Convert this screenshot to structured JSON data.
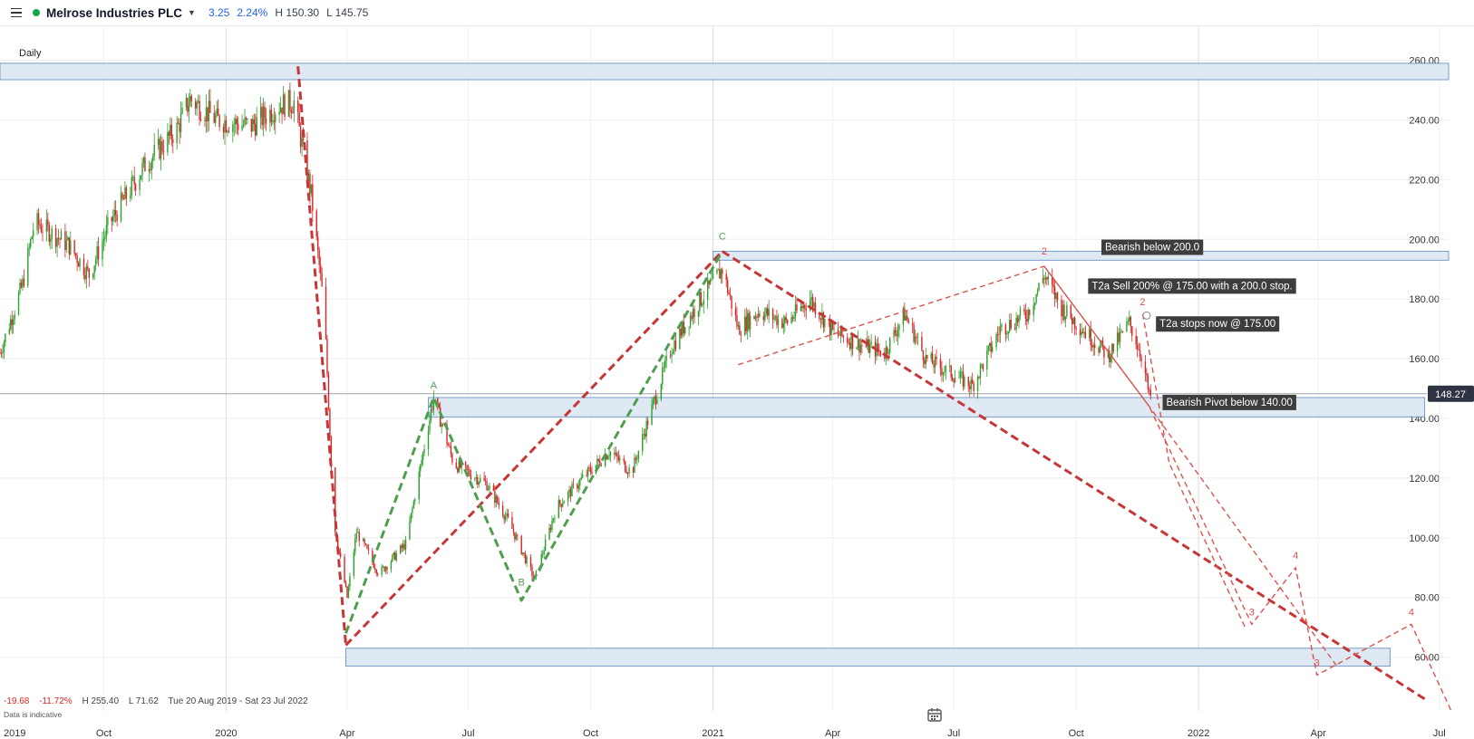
{
  "header": {
    "menu_icon": "hamburger-menu-icon",
    "instrument": "Melrose Industries PLC",
    "change": "3.25",
    "change_pct": "2.24%",
    "high": "H 150.30",
    "low": "L 145.75"
  },
  "chart_data": {
    "type": "candlestick",
    "period_label": "Daily",
    "y_ticks": [
      "260.00",
      "240.00",
      "220.00",
      "200.00",
      "180.00",
      "160.00",
      "140.00",
      "120.00",
      "100.00",
      "80.00",
      "60.00"
    ],
    "ylim": [
      52,
      262
    ],
    "x_labels": [
      "2019",
      "Oct",
      "2020",
      "Apr",
      "Jul",
      "Oct",
      "2021",
      "Apr",
      "Jul",
      "Oct",
      "2022",
      "Apr",
      "Jul"
    ],
    "x_range": [
      "2019-07-15",
      "2022-07-08"
    ],
    "last_price": 148.27,
    "last_price_label": "148.27",
    "price_path": [
      [
        "2019-07-15",
        162
      ],
      [
        "2019-08-01",
        185
      ],
      [
        "2019-08-10",
        206
      ],
      [
        "2019-09-05",
        198
      ],
      [
        "2019-09-20",
        188
      ],
      [
        "2019-10-05",
        205
      ],
      [
        "2019-11-01",
        225
      ],
      [
        "2019-11-25",
        237
      ],
      [
        "2019-12-05",
        247
      ],
      [
        "2019-12-25",
        240
      ],
      [
        "2020-01-20",
        238
      ],
      [
        "2020-02-10",
        245
      ],
      [
        "2020-02-21",
        246
      ],
      [
        "2020-03-05",
        215
      ],
      [
        "2020-03-15",
        175
      ],
      [
        "2020-03-22",
        105
      ],
      [
        "2020-04-01",
        80
      ],
      [
        "2020-04-08",
        102
      ],
      [
        "2020-04-25",
        88
      ],
      [
        "2020-05-15",
        98
      ],
      [
        "2020-06-05",
        147
      ],
      [
        "2020-06-20",
        125
      ],
      [
        "2020-07-15",
        118
      ],
      [
        "2020-08-01",
        105
      ],
      [
        "2020-08-20",
        86
      ],
      [
        "2020-09-05",
        110
      ],
      [
        "2020-09-25",
        120
      ],
      [
        "2020-10-15",
        129
      ],
      [
        "2020-11-01",
        122
      ],
      [
        "2020-11-15",
        142
      ],
      [
        "2020-12-01",
        164
      ],
      [
        "2020-12-20",
        178
      ],
      [
        "2021-01-08",
        190
      ],
      [
        "2021-01-20",
        170
      ],
      [
        "2021-02-05",
        176
      ],
      [
        "2021-02-25",
        172
      ],
      [
        "2021-03-15",
        180
      ],
      [
        "2021-04-01",
        169
      ],
      [
        "2021-04-20",
        165
      ],
      [
        "2021-05-10",
        162
      ],
      [
        "2021-05-25",
        175
      ],
      [
        "2021-06-10",
        160
      ],
      [
        "2021-06-25",
        156
      ],
      [
        "2021-07-15",
        151
      ],
      [
        "2021-08-05",
        170
      ],
      [
        "2021-08-25",
        175
      ],
      [
        "2021-09-07",
        188
      ],
      [
        "2021-09-20",
        177
      ],
      [
        "2021-10-10",
        168
      ],
      [
        "2021-10-25",
        161
      ],
      [
        "2021-11-10",
        172
      ],
      [
        "2021-11-20",
        160
      ],
      [
        "2021-11-25",
        147
      ],
      [
        "2021-11-27",
        148
      ]
    ],
    "zones": [
      {
        "from": 253.5,
        "to": 259,
        "x_start": "2019-07-15",
        "x_end": "2022-07-08"
      },
      {
        "from": 193,
        "to": 196,
        "x_start": "2021-01-01",
        "x_end": "2022-07-08"
      },
      {
        "from": 140.5,
        "to": 147,
        "x_start": "2020-06-01",
        "x_end": "2022-06-20"
      },
      {
        "from": 57,
        "to": 63,
        "x_start": "2020-03-31",
        "x_end": "2022-05-25"
      }
    ],
    "wave_lines": [
      {
        "color": "#c63636",
        "style": "thick-dash",
        "points": [
          [
            "2020-02-24",
            258
          ],
          [
            "2020-03-31",
            64
          ]
        ]
      },
      {
        "color": "#c63636",
        "style": "thick-dash",
        "points": [
          [
            "2020-03-31",
            64
          ],
          [
            "2021-01-08",
            196
          ]
        ]
      },
      {
        "color": "#c63636",
        "style": "thick-dash",
        "points": [
          [
            "2021-01-08",
            196
          ],
          [
            "2022-06-20",
            46
          ]
        ]
      },
      {
        "color": "#4f9e4f",
        "style": "thick-dash",
        "points": [
          [
            "2020-03-31",
            68
          ],
          [
            "2020-06-05",
            147
          ],
          [
            "2020-08-10",
            79
          ],
          [
            "2021-01-08",
            196
          ]
        ]
      },
      {
        "color": "#d9534f",
        "style": "thin-dash",
        "points": [
          [
            "2021-01-20",
            158
          ],
          [
            "2021-09-07",
            191
          ],
          [
            "2021-11-25",
            144
          ],
          [
            "2022-02-10",
            71
          ],
          [
            "2022-03-15",
            90
          ],
          [
            "2022-03-31",
            54
          ],
          [
            "2022-06-10",
            71
          ],
          [
            "2022-07-10",
            42
          ]
        ]
      },
      {
        "color": "#d9534f",
        "style": "thin-dash",
        "points": [
          [
            "2021-09-07",
            191
          ],
          [
            "2021-11-25",
            144
          ],
          [
            "2022-04-15",
            57
          ]
        ]
      },
      {
        "color": "#d9534f",
        "style": "thin-dash",
        "points": [
          [
            "2021-11-20",
            175
          ],
          [
            "2021-12-10",
            125
          ],
          [
            "2022-02-05",
            70
          ]
        ]
      }
    ],
    "wave_labels": [
      {
        "text": "A",
        "color": "#4f9e4f",
        "date": "2020-06-05",
        "price": 150
      },
      {
        "text": "B",
        "color": "#4f9e4f",
        "date": "2020-08-10",
        "price": 84
      },
      {
        "text": "C",
        "color": "#4f9e4f",
        "date": "2021-01-08",
        "price": 200
      },
      {
        "text": "2",
        "color": "#d9534f",
        "date": "2021-09-07",
        "price": 195
      },
      {
        "text": "2",
        "color": "#d9534f",
        "date": "2021-11-20",
        "price": 178
      },
      {
        "text": "3",
        "color": "#d9534f",
        "date": "2022-02-10",
        "price": 74
      },
      {
        "text": "4",
        "color": "#d9534f",
        "date": "2022-03-15",
        "price": 93
      },
      {
        "text": "3",
        "color": "#d9534f",
        "date": "2022-03-31",
        "price": 57
      },
      {
        "text": "4",
        "color": "#d9534f",
        "date": "2022-06-10",
        "price": 74
      }
    ],
    "annotations": [
      {
        "text": "Bearish below 200.0",
        "date": "2021-10-20",
        "price": 197.5
      },
      {
        "text": "T2a Sell 200% @ 175.00 with a 200.0 stop.",
        "date": "2021-10-10",
        "price": 184.5
      },
      {
        "text": "T2a stops now @ 175.00",
        "date": "2021-11-30",
        "price": 171.8
      },
      {
        "text": "Bearish Pivot below 140.00",
        "date": "2021-12-05",
        "price": 145.5
      }
    ]
  },
  "footer": {
    "change": "-19.68",
    "change_pct": "-11.72%",
    "high": "H 255.40",
    "low": "L 71.62",
    "range": "Tue 20 Aug 2019 - Sat 23 Jul 2022",
    "note": "Data is indicative",
    "calendar_icon": "calendar-icon"
  },
  "colors": {
    "up": "#2ca02c",
    "down": "#d62728",
    "zone_fill": "#dbe7f3",
    "zone_stroke": "#6b93c2",
    "label_bg": "#3d3d3d",
    "accent": "#2563eb"
  }
}
